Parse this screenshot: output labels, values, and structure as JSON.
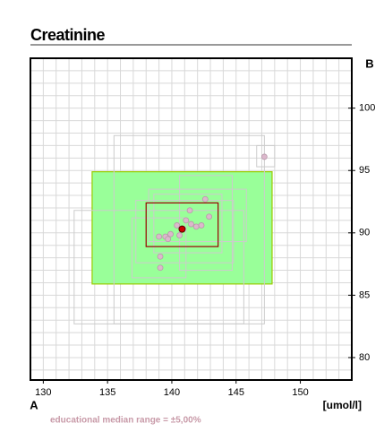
{
  "chart_data": {
    "type": "scatter",
    "title": "Creatinine",
    "x_label": "A",
    "y_label": "B",
    "unit": "[umol/l]",
    "note": "educational median range = ±5,00%",
    "xlim": [
      129,
      154
    ],
    "ylim": [
      78.2,
      104
    ],
    "xticks": [
      130,
      135,
      140,
      145,
      150
    ],
    "yticks": [
      80,
      85,
      90,
      95,
      100
    ],
    "xminor": [
      130,
      131,
      132,
      133,
      134,
      135,
      136,
      137,
      138,
      139,
      140,
      141,
      142,
      143,
      144,
      145,
      146,
      147,
      148,
      149,
      150,
      151,
      152,
      153
    ],
    "yminor": [
      79,
      80,
      81,
      82,
      83,
      84,
      85,
      86,
      87,
      88,
      89,
      90,
      91,
      92,
      93,
      94,
      95,
      96,
      97,
      98,
      99,
      100,
      101,
      102,
      103
    ],
    "grid": true,
    "target_range": {
      "x": [
        133.8,
        147.8
      ],
      "y": [
        85.9,
        94.9
      ],
      "color": "#99ff99",
      "edge": "#99cc00"
    },
    "boxes": [
      {
        "x": [
          135.5,
          147.2
        ],
        "y": [
          82.7,
          97.8
        ]
      },
      {
        "x": [
          132.4,
          145.6
        ],
        "y": [
          82.7,
          91.8
        ]
      },
      {
        "x": [
          146.6,
          148.0
        ],
        "y": [
          95.3,
          97.0
        ]
      },
      {
        "x": [
          140.6,
          144.7
        ],
        "y": [
          87.0,
          94.6
        ]
      },
      {
        "x": [
          136.9,
          141.1
        ],
        "y": [
          86.4,
          91.2
        ]
      },
      {
        "x": [
          138.2,
          145.8
        ],
        "y": [
          89.3,
          93.5
        ]
      },
      {
        "x": [
          137.2,
          144.8
        ],
        "y": [
          87.6,
          92.6
        ]
      },
      {
        "x": [
          138.6,
          143.9
        ],
        "y": [
          88.4,
          93.1
        ]
      }
    ],
    "box_color": "#cccccc",
    "points": {
      "x": [
        147.2,
        142.6,
        141.4,
        142.9,
        141.1,
        141.5,
        140.4,
        141.9,
        142.3,
        139.9,
        139.5,
        139.0,
        139.7,
        140.6,
        139.1,
        139.1
      ],
      "y": [
        96.1,
        92.7,
        91.8,
        91.3,
        91.0,
        90.7,
        90.6,
        90.5,
        90.6,
        89.9,
        89.7,
        89.7,
        89.5,
        89.8,
        88.1,
        87.2
      ],
      "color": "#dcb8cc"
    },
    "median_box": {
      "x": [
        138.0,
        143.6
      ],
      "y": [
        88.9,
        92.4
      ],
      "color": "#990000"
    },
    "median": {
      "x": 140.8,
      "y": 90.3,
      "color": "#cc0000"
    }
  }
}
